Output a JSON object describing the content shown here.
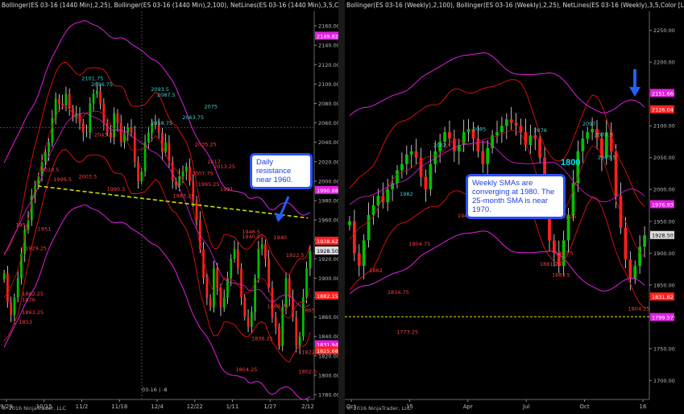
{
  "left_panel": {
    "title": "Bollinger(ES 03-16 (1440 Min),2,25), Bollinger(ES 03-16 (1440 Min),2,100), NetLines(ES 03-16 (1440 Min),3,5,Color [L",
    "copyright": "© 2016 NinjaTrader, LLC",
    "callout": "Daily resistance near 1960.",
    "cursor_label": "03-16 | -8"
  },
  "right_panel": {
    "title": "Bollinger(ES 03-16 (Weekly),2,100), Bollinger(ES 03-16 (Weekly),2,25), NetLines(ES 03-16 (Weekly),3,5,Color [L",
    "copyright": "© 2016 NinjaTrader, LLC",
    "callout": "Weekly SMAs are converging at 1980. The 25-month SMA is near 1970.",
    "level_label": "1800"
  },
  "colors": {
    "up_candle": "#00c000",
    "down_candle": "#ff2020",
    "boll_outer": "#e020e0",
    "boll_inner": "#d01010",
    "trend": "#c8e000",
    "arrow": "#2060ff",
    "level_line": "#e0e000"
  },
  "chart_data": [
    {
      "type": "candlestick",
      "name": "left",
      "ylim": [
        1775,
        2175
      ],
      "x_ticks": [
        "9/29",
        "10/15",
        "11/2",
        "11/18",
        "12/4",
        "12/22",
        "1/11",
        "1/27",
        "2/12"
      ],
      "y_ticks": [
        1780,
        1800,
        1820,
        1840,
        1860,
        1880,
        1900,
        1920,
        1940,
        1960,
        1980,
        2000,
        2020,
        2040,
        2060,
        2080,
        2100,
        2120,
        2140,
        2160
      ],
      "price_tags": [
        {
          "value": "2149.82",
          "y": 2149.8,
          "color": "#e020e0"
        },
        {
          "value": "1990.88",
          "y": 1990.9,
          "color": "#e020e0"
        },
        {
          "value": "1938.62",
          "y": 1938.6,
          "color": "#ff2020"
        },
        {
          "value": "1928.50",
          "y": 1928.5,
          "color": "#dddddd"
        },
        {
          "value": "1882.15",
          "y": 1882.2,
          "color": "#ff2020"
        },
        {
          "value": "1831.94",
          "y": 1831.9,
          "color": "#e020e0"
        },
        {
          "value": "1825.68",
          "y": 1825.7,
          "color": "#ff2020"
        }
      ],
      "swing_labels": [
        {
          "text": "2101.75",
          "x": 0.26,
          "y": 2104
        },
        {
          "text": "2096.75",
          "x": 0.29,
          "y": 2098
        },
        {
          "text": "2093.5",
          "x": 0.48,
          "y": 2093
        },
        {
          "text": "2087.5",
          "x": 0.5,
          "y": 2087
        },
        {
          "text": "2075",
          "x": 0.65,
          "y": 2075
        },
        {
          "text": "2063.75",
          "x": 0.58,
          "y": 2064
        },
        {
          "text": "2058.75",
          "x": 0.48,
          "y": 2058
        },
        {
          "text": "2043.25",
          "x": 0.3,
          "y": 2046
        },
        {
          "text": "2035.25",
          "x": 0.62,
          "y": 2036
        },
        {
          "text": "2017",
          "x": 0.66,
          "y": 2018
        },
        {
          "text": "2013.25",
          "x": 0.68,
          "y": 2013
        },
        {
          "text": "2007.75",
          "x": 0.61,
          "y": 2006
        },
        {
          "text": "2010.5",
          "x": 0.13,
          "y": 2010
        },
        {
          "text": "2003.5",
          "x": 0.25,
          "y": 2003
        },
        {
          "text": "1999.5",
          "x": 0.17,
          "y": 2000
        },
        {
          "text": "1995.25",
          "x": 0.63,
          "y": 1995
        },
        {
          "text": "1990.5",
          "x": 0.34,
          "y": 1990
        },
        {
          "text": "1991",
          "x": 0.7,
          "y": 1990
        },
        {
          "text": "1983.25",
          "x": 0.55,
          "y": 1983
        },
        {
          "text": "1954",
          "x": 0.05,
          "y": 1953
        },
        {
          "text": "1951",
          "x": 0.12,
          "y": 1949
        },
        {
          "text": "1946.5",
          "x": 0.77,
          "y": 1946
        },
        {
          "text": "1940.25",
          "x": 0.77,
          "y": 1941
        },
        {
          "text": "1940",
          "x": 0.87,
          "y": 1940
        },
        {
          "text": "1929.25",
          "x": 0.08,
          "y": 1929
        },
        {
          "text": "1922.5",
          "x": 0.91,
          "y": 1922
        },
        {
          "text": "1882.25",
          "x": 0.07,
          "y": 1882
        },
        {
          "text": "1876",
          "x": 0.07,
          "y": 1876
        },
        {
          "text": "1869.75",
          "x": 0.85,
          "y": 1869
        },
        {
          "text": "1865",
          "x": 0.96,
          "y": 1865
        },
        {
          "text": "1863.25",
          "x": 0.07,
          "y": 1863
        },
        {
          "text": "1853",
          "x": 0.06,
          "y": 1853
        },
        {
          "text": "1836.25",
          "x": 0.8,
          "y": 1836
        },
        {
          "text": "1822.5",
          "x": 0.96,
          "y": 1822
        },
        {
          "text": "1804.25",
          "x": 0.75,
          "y": 1804
        },
        {
          "text": "1802.5",
          "x": 0.95,
          "y": 1802
        }
      ],
      "trend_line": [
        [
          0.12,
          1995
        ],
        [
          0.98,
          1962
        ]
      ],
      "closes": [
        1905,
        1875,
        1862,
        1880,
        1900,
        1925,
        1950,
        1960,
        1985,
        1995,
        2005,
        2020,
        2030,
        2040,
        2065,
        2085,
        2080,
        2078,
        2090,
        2075,
        2065,
        2070,
        2060,
        2050,
        2050,
        2080,
        2090,
        2093,
        2080,
        2060,
        2050,
        2045,
        2070,
        2060,
        2040,
        2050,
        2055,
        2050,
        2020,
        2000,
        2010,
        2040,
        2050,
        2060,
        2058,
        2050,
        2030,
        2040,
        2020,
        2000,
        1995,
        2005,
        2010,
        2015,
        2000,
        1980,
        1960,
        1930,
        1900,
        1880,
        1870,
        1910,
        1890,
        1870,
        1880,
        1900,
        1920,
        1930,
        1910,
        1880,
        1860,
        1850,
        1865,
        1900,
        1930,
        1935,
        1920,
        1890,
        1860,
        1850,
        1830,
        1870,
        1900,
        1880,
        1860,
        1830,
        1840,
        1880,
        1910,
        1928
      ]
    },
    {
      "type": "candlestick",
      "name": "right",
      "ylim": [
        1670,
        2280
      ],
      "x_ticks": [
        "Oct",
        "15",
        "Apr",
        "Jul",
        "Oct",
        "16"
      ],
      "y_ticks": [
        1700,
        1750,
        1800,
        1850,
        1900,
        1950,
        2000,
        2050,
        2100,
        2150,
        2200,
        2250
      ],
      "price_tags": [
        {
          "value": "2151.66",
          "y": 2151.7,
          "color": "#e020e0"
        },
        {
          "value": "2126.04",
          "y": 2126.0,
          "color": "#ff2020"
        },
        {
          "value": "1976.93",
          "y": 1976.9,
          "color": "#e020e0"
        },
        {
          "value": "1928.50",
          "y": 1928.5,
          "color": "#dddddd"
        },
        {
          "value": "1831.82",
          "y": 1831.8,
          "color": "#ff2020"
        },
        {
          "value": "1799.57",
          "y": 1799.6,
          "color": "#e020e0"
        }
      ],
      "swing_labels": [
        {
          "text": "2097",
          "x": 0.78,
          "y": 2100
        },
        {
          "text": "2074.5",
          "x": 0.82,
          "y": 2083
        },
        {
          "text": "2043.5",
          "x": 0.83,
          "y": 2048
        },
        {
          "text": "2085",
          "x": 0.42,
          "y": 2092
        },
        {
          "text": "2062",
          "x": 0.29,
          "y": 2067
        },
        {
          "text": "2076",
          "x": 0.62,
          "y": 2090
        },
        {
          "text": "1982",
          "x": 0.18,
          "y": 1990
        },
        {
          "text": "1949.25",
          "x": 0.37,
          "y": 1956
        },
        {
          "text": "1947.25",
          "x": 0.69,
          "y": 1955
        },
        {
          "text": "1904.75",
          "x": 0.21,
          "y": 1912
        },
        {
          "text": "1867.5",
          "x": 0.69,
          "y": 1897
        },
        {
          "text": "1881.25",
          "x": 0.64,
          "y": 1880
        },
        {
          "text": "1883.5",
          "x": 0.68,
          "y": 1863
        },
        {
          "text": "1834.75",
          "x": 0.14,
          "y": 1836
        },
        {
          "text": "1862",
          "x": 0.08,
          "y": 1870
        },
        {
          "text": "1773.25",
          "x": 0.17,
          "y": 1773
        },
        {
          "text": "1804.25",
          "x": 0.93,
          "y": 1810
        }
      ],
      "level_line": 1800,
      "closes": [
        1950,
        1900,
        1880,
        1920,
        1960,
        1975,
        1990,
        1980,
        2000,
        2010,
        2030,
        2040,
        2055,
        2060,
        2050,
        2020,
        2000,
        2040,
        2060,
        2075,
        2090,
        2080,
        2060,
        2070,
        2090,
        2095,
        2080,
        2060,
        2040,
        2065,
        2085,
        2090,
        2100,
        2110,
        2105,
        2100,
        2090,
        2070,
        2085,
        2080,
        2050,
        1980,
        1920,
        1900,
        1880,
        1920,
        1960,
        2010,
        2060,
        2080,
        2090,
        2095,
        2080,
        2050,
        2090,
        2060,
        1990,
        1940,
        1890,
        1860,
        1880,
        1910,
        1928
      ]
    }
  ]
}
